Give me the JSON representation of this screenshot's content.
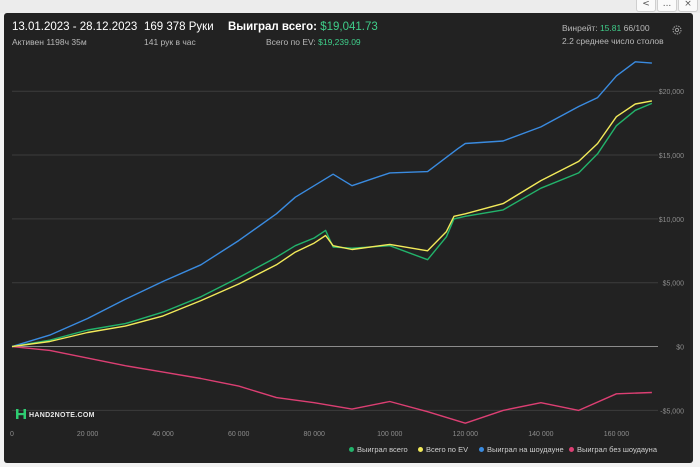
{
  "header": {
    "date_range": "13.01.2023 - 28.12.2023",
    "active": "Активен 1198ч 35м",
    "hands": "169 378 Руки",
    "hands_per_hour": "141 рук в час",
    "won_total_label": "Выиграл всего:",
    "won_total_value": "$19,041.73",
    "ev_label": "Всего по EV:",
    "ev_value": "$19,239.09",
    "winrate_label": "Винрейт:",
    "winrate_value": "15.81",
    "winrate_suffix": "66/100",
    "tables": "2.2 среднее число столов"
  },
  "logo_text": "HAND2NOTE.COM",
  "icons": {
    "settings": "gear-icon",
    "logo": "hand2note-logo-icon"
  },
  "window_controls": [
    "<",
    "...",
    "×"
  ],
  "chart_data": {
    "type": "line",
    "x_ticks": [
      0,
      20000,
      40000,
      60000,
      80000,
      100000,
      120000,
      140000,
      160000
    ],
    "x_tick_labels": [
      "0",
      "20 000",
      "40 000",
      "60 000",
      "80 000",
      "100 000",
      "120 000",
      "140 000",
      "160 000"
    ],
    "y_ticks": [
      -5000,
      0,
      5000,
      10000,
      15000,
      20000
    ],
    "y_tick_labels": [
      "-$5,000",
      "$0",
      "$5,000",
      "$10,000",
      "$15,000",
      "$20,000"
    ],
    "xlim": [
      0,
      171000
    ],
    "ylim": [
      -6300,
      22600
    ],
    "grid": "horizontal",
    "legend_position": "bottom-right",
    "series": [
      {
        "name": "Выиграл всего",
        "color": "#22b36b",
        "x": [
          0,
          10000,
          20000,
          30000,
          40000,
          50000,
          60000,
          70000,
          75000,
          80000,
          83000,
          85000,
          90000,
          100000,
          110000,
          115000,
          117000,
          120000,
          130000,
          140000,
          150000,
          155000,
          160000,
          165000,
          169378
        ],
        "y": [
          0,
          500,
          1300,
          1800,
          2700,
          3900,
          5400,
          7000,
          7900,
          8500,
          9100,
          7800,
          7700,
          7900,
          6800,
          8600,
          10000,
          10200,
          10700,
          12400,
          13600,
          15100,
          17300,
          18500,
          19042
        ]
      },
      {
        "name": "Всего по EV",
        "color": "#f2ea5a",
        "x": [
          0,
          10000,
          20000,
          30000,
          40000,
          50000,
          60000,
          70000,
          75000,
          80000,
          83000,
          85000,
          90000,
          100000,
          110000,
          115000,
          117000,
          120000,
          130000,
          140000,
          150000,
          155000,
          160000,
          165000,
          169378
        ],
        "y": [
          0,
          400,
          1100,
          1600,
          2400,
          3600,
          4900,
          6400,
          7400,
          8100,
          8700,
          7900,
          7600,
          8000,
          7500,
          9000,
          10200,
          10400,
          11200,
          13000,
          14500,
          15900,
          18000,
          19000,
          19239
        ]
      },
      {
        "name": "Выиграл на шоудауне",
        "color": "#3a8be0",
        "x": [
          0,
          10000,
          20000,
          30000,
          40000,
          50000,
          60000,
          70000,
          75000,
          80000,
          85000,
          90000,
          100000,
          110000,
          118000,
          120000,
          130000,
          140000,
          150000,
          155000,
          160000,
          165000,
          169378
        ],
        "y": [
          0,
          900,
          2200,
          3700,
          5100,
          6400,
          8300,
          10400,
          11700,
          12600,
          13500,
          12600,
          13600,
          13700,
          15500,
          15900,
          16100,
          17200,
          18800,
          19500,
          21200,
          22300,
          22200
        ]
      },
      {
        "name": "Выиграл без шоудауна",
        "color": "#dc3f73",
        "x": [
          0,
          10000,
          20000,
          30000,
          40000,
          50000,
          60000,
          70000,
          80000,
          90000,
          100000,
          110000,
          120000,
          130000,
          140000,
          150000,
          160000,
          169378
        ],
        "y": [
          0,
          -300,
          -900,
          -1500,
          -2000,
          -2500,
          -3100,
          -4000,
          -4400,
          -4900,
          -4300,
          -5100,
          -6000,
          -5000,
          -4400,
          -5000,
          -3700,
          -3600
        ]
      }
    ]
  }
}
